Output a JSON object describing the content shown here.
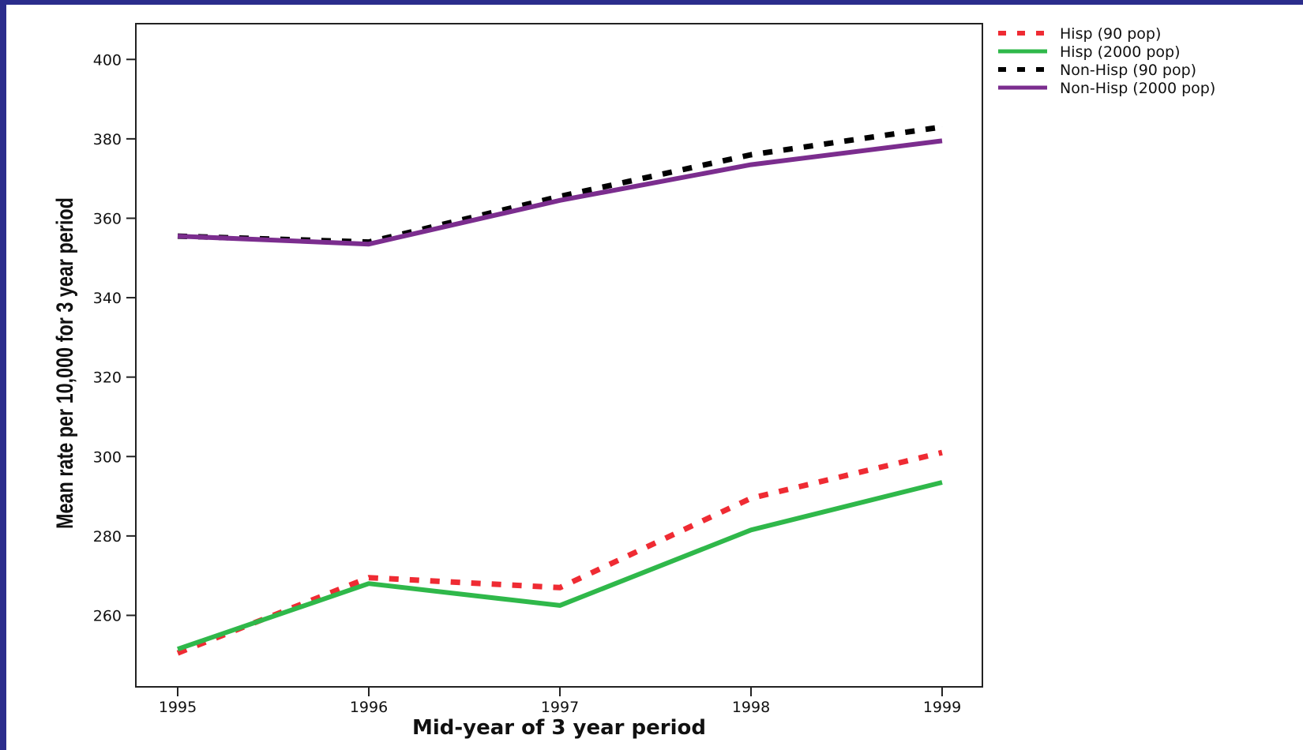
{
  "chart_data": {
    "type": "line",
    "title": "",
    "xlabel": "Mid-year of 3 year period",
    "ylabel": "Mean rate per 10,000 for 3 year period",
    "x": [
      1995,
      1996,
      1997,
      1998,
      1999
    ],
    "x_tick_labels": [
      "1995",
      "1996",
      "1997",
      "1998",
      "1999"
    ],
    "y_ticks": [
      260,
      280,
      300,
      320,
      340,
      360,
      380,
      400
    ],
    "y_tick_labels": [
      "260",
      "280",
      "300",
      "320",
      "340",
      "360",
      "380",
      "400"
    ],
    "ylim": [
      242,
      409
    ],
    "grid": false,
    "legend_position": "top-right outside",
    "series": [
      {
        "name": "Hisp (90 pop)",
        "color": "#ef2b33",
        "style": "dotted",
        "values": [
          250.5,
          269.5,
          267,
          289.5,
          301
        ]
      },
      {
        "name": "Hisp (2000 pop)",
        "color": "#2fb84a",
        "style": "solid",
        "values": [
          251.5,
          268,
          262.5,
          281.5,
          293.5
        ]
      },
      {
        "name": "Non-Hisp (90 pop)",
        "color": "#000000",
        "style": "dotted",
        "values": [
          355.5,
          354,
          365.5,
          376,
          383
        ]
      },
      {
        "name": "Non-Hisp (2000 pop)",
        "color": "#7b2d8e",
        "style": "solid",
        "values": [
          355.5,
          353.5,
          364.5,
          373.5,
          379.5
        ]
      }
    ]
  }
}
